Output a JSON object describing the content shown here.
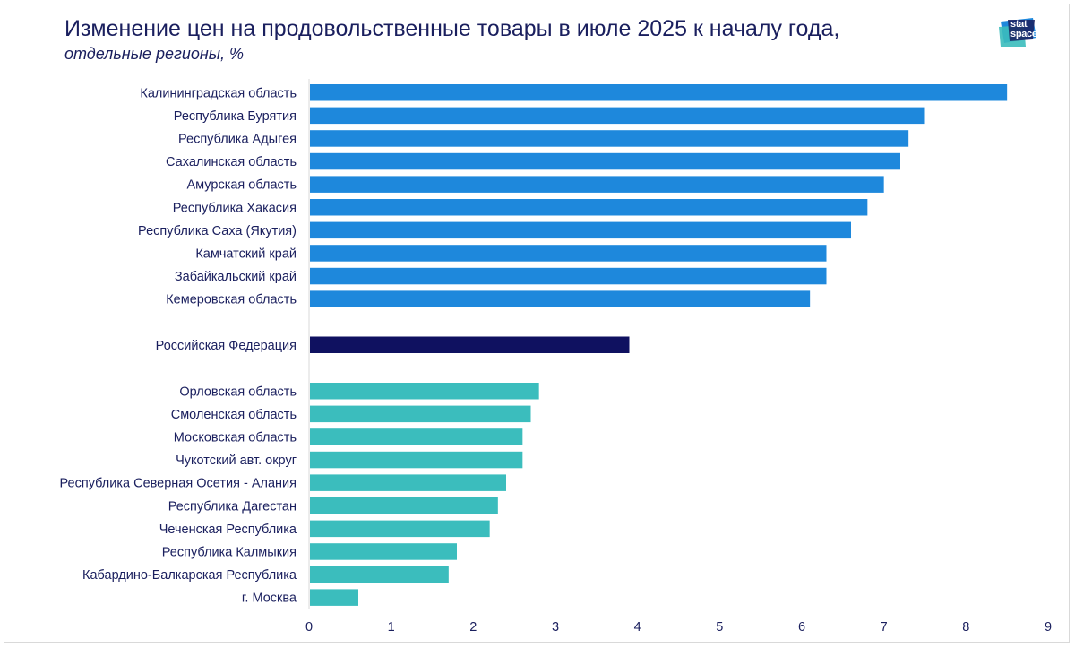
{
  "chart_data": {
    "type": "bar",
    "orientation": "horizontal",
    "title": "Изменение цен на продовольственные товары в июле 2025 к началу года,",
    "subtitle": "отдельные регионы, %",
    "xlim": [
      0,
      9
    ],
    "xticks": [
      "0",
      "1",
      "2",
      "3",
      "4",
      "5",
      "6",
      "7",
      "8",
      "9"
    ],
    "groups": [
      {
        "name": "top",
        "color": "#1e88dc",
        "categories": [
          "Калининградская область",
          "Республика Бурятия",
          "Республика Адыгея",
          "Сахалинская область",
          "Амурская область",
          "Республика Хакасия",
          "Республика Саха (Якутия)",
          "Камчатский край",
          "Забайкальский край",
          "Кемеровская область"
        ],
        "values": [
          8.5,
          7.5,
          7.3,
          7.2,
          7.0,
          6.8,
          6.6,
          6.3,
          6.3,
          6.1
        ]
      },
      {
        "name": "federation",
        "color": "#0f1160",
        "categories": [
          "Российская Федерация"
        ],
        "values": [
          3.9
        ]
      },
      {
        "name": "bottom",
        "color": "#3bbdbd",
        "categories": [
          "Орловская область",
          "Смоленская область",
          "Московская область",
          "Чукотский авт. округ",
          "Республика Северная Осетия - Алания",
          "Республика Дагестан",
          "Чеченская Республика",
          "Республика Калмыкия",
          "Кабардино-Балкарская Республика",
          "г. Москва"
        ],
        "values": [
          2.8,
          2.7,
          2.6,
          2.6,
          2.4,
          2.3,
          2.2,
          1.8,
          1.7,
          0.6
        ]
      }
    ]
  },
  "logo": {
    "line1": "stat",
    "line2": "space",
    "colors": [
      "#1e88dc",
      "#3bbdbd",
      "#1a1f5e"
    ]
  }
}
